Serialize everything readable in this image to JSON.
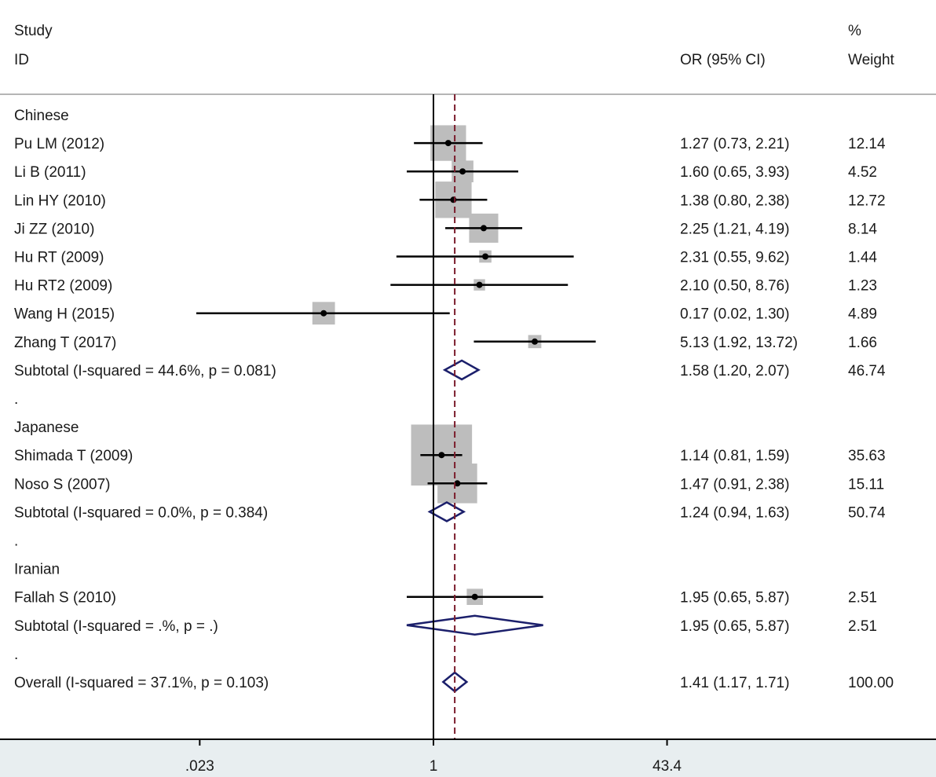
{
  "header": {
    "col1_line1": "Study",
    "col1_line2": "ID",
    "col2": "OR (95% CI)",
    "col3_line1": "%",
    "col3_line2": "Weight"
  },
  "colors": {
    "ci_line": "#000000",
    "weight_box": "#bdbdbd",
    "diamond": "#1b1f6b",
    "null_line": "#000000",
    "overall_line": "#7a1b2b",
    "footer_bg": "#e8eef0"
  },
  "chart_data": {
    "type": "forest",
    "x_scale": "log",
    "x_ticks": [
      {
        "value": 0.023,
        "label": ".023"
      },
      {
        "value": 1,
        "label": "1"
      },
      {
        "value": 43.4,
        "label": "43.4"
      }
    ],
    "xlim": [
      0.023,
      43.4
    ],
    "null_value": 1,
    "overall_or": 1.41,
    "rows": [
      {
        "kind": "group",
        "label": "Chinese"
      },
      {
        "kind": "study",
        "label": "Pu LM  (2012)",
        "or": 1.27,
        "lo": 0.73,
        "hi": 2.21,
        "ci_text": "1.27 (0.73, 2.21)",
        "weight": 12.14,
        "weight_text": "12.14"
      },
      {
        "kind": "study",
        "label": "Li B  (2011)",
        "or": 1.6,
        "lo": 0.65,
        "hi": 3.93,
        "ci_text": "1.60 (0.65, 3.93)",
        "weight": 4.52,
        "weight_text": "4.52"
      },
      {
        "kind": "study",
        "label": "Lin HY (2010)",
        "or": 1.38,
        "lo": 0.8,
        "hi": 2.38,
        "ci_text": "1.38 (0.80, 2.38)",
        "weight": 12.72,
        "weight_text": "12.72"
      },
      {
        "kind": "study",
        "label": "Ji ZZ (2010)",
        "or": 2.25,
        "lo": 1.21,
        "hi": 4.19,
        "ci_text": "2.25 (1.21, 4.19)",
        "weight": 8.14,
        "weight_text": "8.14"
      },
      {
        "kind": "study",
        "label": "Hu RT (2009)",
        "or": 2.31,
        "lo": 0.55,
        "hi": 9.62,
        "ci_text": "2.31 (0.55, 9.62)",
        "weight": 1.44,
        "weight_text": "1.44"
      },
      {
        "kind": "study",
        "label": "Hu RT2 (2009)",
        "or": 2.1,
        "lo": 0.5,
        "hi": 8.76,
        "ci_text": "2.10 (0.50, 8.76)",
        "weight": 1.23,
        "weight_text": "1.23"
      },
      {
        "kind": "study",
        "label": "Wang H (2015)",
        "or": 0.17,
        "lo": 0.02,
        "hi": 1.3,
        "ci_text": "0.17 (0.02, 1.30)",
        "weight": 4.89,
        "weight_text": "4.89"
      },
      {
        "kind": "study",
        "label": "Zhang T (2017)",
        "or": 5.13,
        "lo": 1.92,
        "hi": 13.72,
        "ci_text": "5.13 (1.92, 13.72)",
        "weight": 1.66,
        "weight_text": "1.66"
      },
      {
        "kind": "subtotal",
        "label": "Subtotal  (I-squared = 44.6%, p = 0.081)",
        "or": 1.58,
        "lo": 1.2,
        "hi": 2.07,
        "ci_text": "1.58 (1.20, 2.07)",
        "weight_text": "46.74"
      },
      {
        "kind": "spacer",
        "label": "."
      },
      {
        "kind": "group",
        "label": "Japanese"
      },
      {
        "kind": "study",
        "label": "Shimada  T (2009)",
        "or": 1.14,
        "lo": 0.81,
        "hi": 1.59,
        "ci_text": "1.14 (0.81, 1.59)",
        "weight": 35.63,
        "weight_text": "35.63"
      },
      {
        "kind": "study",
        "label": "Noso S  (2007)",
        "or": 1.47,
        "lo": 0.91,
        "hi": 2.38,
        "ci_text": "1.47 (0.91, 2.38)",
        "weight": 15.11,
        "weight_text": "15.11"
      },
      {
        "kind": "subtotal",
        "label": "Subtotal  (I-squared = 0.0%, p = 0.384)",
        "or": 1.24,
        "lo": 0.94,
        "hi": 1.63,
        "ci_text": "1.24 (0.94, 1.63)",
        "weight_text": "50.74"
      },
      {
        "kind": "spacer",
        "label": "."
      },
      {
        "kind": "group",
        "label": "Iranian"
      },
      {
        "kind": "study",
        "label": "Fallah S (2010)",
        "or": 1.95,
        "lo": 0.65,
        "hi": 5.87,
        "ci_text": "1.95 (0.65, 5.87)",
        "weight": 2.51,
        "weight_text": "2.51"
      },
      {
        "kind": "subtotal",
        "label": "Subtotal  (I-squared = .%, p = .)",
        "or": 1.95,
        "lo": 0.65,
        "hi": 5.87,
        "ci_text": "1.95 (0.65, 5.87)",
        "weight_text": "2.51"
      },
      {
        "kind": "spacer",
        "label": "."
      },
      {
        "kind": "overall",
        "label": "Overall  (I-squared = 37.1%, p = 0.103)",
        "or": 1.41,
        "lo": 1.17,
        "hi": 1.71,
        "ci_text": "1.41 (1.17, 1.71)",
        "weight_text": "100.00"
      }
    ]
  }
}
